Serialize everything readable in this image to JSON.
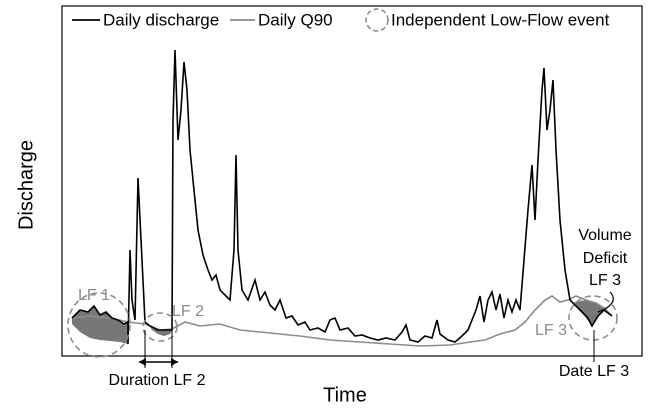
{
  "legend": {
    "items": [
      "Daily discharge",
      "Daily Q90",
      "Independent Low-Flow event"
    ]
  },
  "axes": {
    "y_label": "Discharge",
    "x_label": "Time"
  },
  "annotations": {
    "lf1": "LF 1",
    "lf2": "LF 2",
    "lf3": "LF 3",
    "duration": "Duration LF 2",
    "date": "Date LF 3",
    "volume": [
      "Volume",
      "Deficit",
      "LF 3"
    ]
  }
}
